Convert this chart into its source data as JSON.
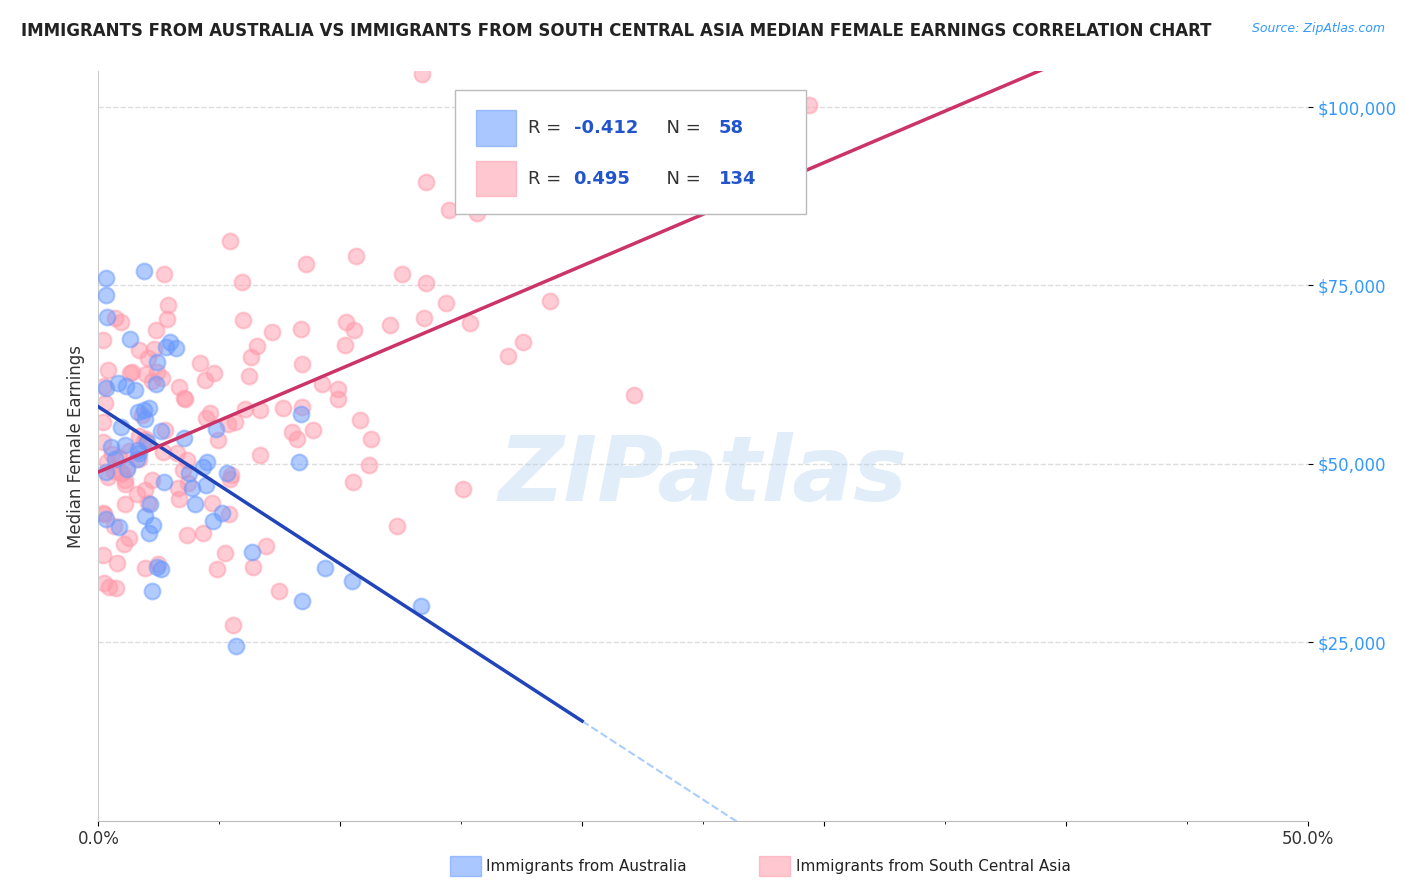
{
  "title": "IMMIGRANTS FROM AUSTRALIA VS IMMIGRANTS FROM SOUTH CENTRAL ASIA MEDIAN FEMALE EARNINGS CORRELATION CHART",
  "source": "Source: ZipAtlas.com",
  "ylabel": "Median Female Earnings",
  "xlim": [
    0.0,
    0.5
  ],
  "ylim": [
    0,
    105000
  ],
  "yticks": [
    25000,
    50000,
    75000,
    100000
  ],
  "ytick_labels": [
    "$25,000",
    "$50,000",
    "$75,000",
    "$100,000"
  ],
  "xtick_labels_ends": [
    "0.0%",
    "50.0%"
  ],
  "australia_R": -0.412,
  "australia_N": 58,
  "sca_R": 0.495,
  "sca_N": 134,
  "australia_color": "#6699ff",
  "sca_color": "#ff99aa",
  "regression_australia_color": "#2244bb",
  "regression_sca_color": "#cc3366",
  "dashed_color": "#aaccff",
  "watermark": "ZIPatlas",
  "watermark_blue": "#aaccee",
  "legend_label_australia": "Immigrants from Australia",
  "legend_label_sca": "Immigrants from South Central Asia",
  "grid_color": "#dddddd",
  "title_fontsize": 12,
  "source_color": "#3399ff"
}
